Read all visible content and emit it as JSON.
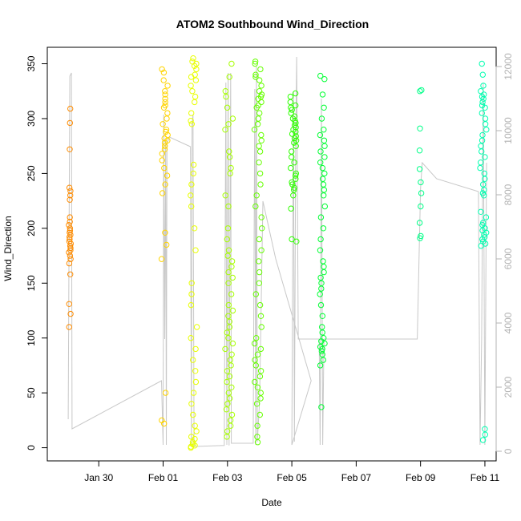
{
  "chart_data": {
    "type": "scatter",
    "title": "ATOM2 Southbound Wind_Direction",
    "xlabel": "Date",
    "ylabel": "Wind_Direction",
    "x_unit": "days since Jan 29 00:00",
    "xlim": [
      -0.6,
      13.35
    ],
    "ylim": [
      -12,
      365
    ],
    "y2lim": [
      -300,
      12600
    ],
    "x_ticks": [
      {
        "label": "Jan 30",
        "x": 1
      },
      {
        "label": "Feb 01",
        "x": 3
      },
      {
        "label": "Feb 03",
        "x": 5
      },
      {
        "label": "Feb 05",
        "x": 7
      },
      {
        "label": "Feb 07",
        "x": 9
      },
      {
        "label": "Feb 09",
        "x": 11
      },
      {
        "label": "Feb 11",
        "x": 13
      }
    ],
    "y_ticks": [
      0,
      50,
      100,
      150,
      200,
      250,
      300,
      350
    ],
    "y2_ticks": [
      0,
      2000,
      4000,
      6000,
      8000,
      10000,
      12000
    ],
    "grid": false,
    "series": [
      {
        "name": "",
        "color": "#ff8c00",
        "x_center": 0.1,
        "x_spread": 0.03,
        "values": [
          309,
          296,
          272,
          237,
          234,
          230,
          226,
          210,
          206,
          203,
          200,
          198,
          196,
          194,
          192,
          190,
          188,
          186,
          184,
          182,
          180,
          178,
          175,
          172,
          168,
          158,
          131,
          122,
          110
        ]
      },
      {
        "name": "",
        "color": "#ffd400",
        "x_center": 3.05,
        "x_spread": 0.1,
        "values": [
          345,
          342,
          335,
          330,
          325,
          322,
          318,
          315,
          312,
          310,
          305,
          300,
          295,
          290,
          288,
          285,
          282,
          280,
          278,
          275,
          272,
          268,
          262,
          255,
          248,
          240,
          232,
          196,
          185,
          172,
          50,
          25,
          22
        ]
      },
      {
        "name": "",
        "color": "#e8ff00",
        "x_center": 3.95,
        "x_spread": 0.1,
        "values": [
          355,
          352,
          350,
          348,
          345,
          340,
          338,
          335,
          330,
          325,
          320,
          315,
          305,
          298,
          295,
          258,
          250,
          240,
          230,
          220,
          200,
          180,
          150,
          140,
          130,
          110,
          100,
          90,
          80,
          70,
          60,
          50,
          40,
          30,
          20,
          15,
          10,
          8,
          5,
          3,
          2,
          1,
          0
        ]
      },
      {
        "name": "",
        "color": "#a6ff00",
        "x_center": 5.05,
        "x_spread": 0.12,
        "values": [
          350,
          338,
          325,
          320,
          310,
          300,
          295,
          290,
          270,
          265,
          255,
          250,
          230,
          220,
          200,
          190,
          180,
          175,
          170,
          165,
          160,
          155,
          150,
          140,
          130,
          125,
          120,
          115,
          110,
          105,
          100,
          95,
          90,
          85,
          80,
          75,
          70,
          65,
          60,
          55,
          50,
          45,
          40,
          35,
          30,
          25,
          20,
          15,
          10
        ]
      },
      {
        "name": "",
        "color": "#66ff00",
        "x_center": 5.95,
        "x_spread": 0.12,
        "values": [
          352,
          350,
          345,
          340,
          338,
          335,
          330,
          325,
          322,
          320,
          318,
          315,
          312,
          310,
          305,
          300,
          295,
          290,
          285,
          280,
          275,
          270,
          260,
          250,
          240,
          230,
          220,
          210,
          200,
          190,
          180,
          170,
          160,
          150,
          140,
          130,
          120,
          110,
          100,
          95,
          90,
          85,
          80,
          75,
          70,
          65,
          60,
          55,
          50,
          45,
          40,
          30,
          20,
          10,
          5
        ]
      },
      {
        "name": "",
        "color": "#2eff00",
        "x_center": 7.05,
        "x_spread": 0.1,
        "values": [
          323,
          320,
          315,
          312,
          310,
          308,
          305,
          302,
          300,
          298,
          296,
          294,
          292,
          290,
          288,
          286,
          284,
          282,
          280,
          278,
          275,
          270,
          265,
          260,
          255,
          250,
          248,
          245,
          242,
          240,
          237,
          235,
          230,
          218,
          190,
          188
        ]
      },
      {
        "name": "",
        "color": "#00ff33",
        "x_center": 7.95,
        "x_spread": 0.08,
        "values": [
          339,
          336,
          322,
          310,
          300,
          290,
          285,
          280,
          275,
          270,
          265,
          260,
          255,
          250,
          245,
          240,
          235,
          230,
          220,
          210,
          200,
          190,
          180,
          170,
          165,
          160,
          155,
          150,
          145,
          140,
          130,
          120,
          110,
          105,
          100,
          97,
          95,
          92,
          90,
          88,
          85,
          80,
          75,
          37
        ]
      },
      {
        "name": "",
        "color": "#00ff88",
        "x_center": 11.0,
        "x_spread": 0.03,
        "values": [
          326,
          325,
          291,
          271,
          254,
          242,
          232,
          220,
          205,
          193,
          191
        ]
      },
      {
        "name": "",
        "color": "#00ffb0",
        "x_center": 12.95,
        "x_spread": 0.1,
        "values": [
          350,
          340,
          330,
          325,
          322,
          320,
          318,
          315,
          312,
          310,
          305,
          300,
          295,
          290,
          285,
          280,
          275,
          270,
          265,
          260,
          255,
          250,
          245,
          240,
          235,
          232,
          230,
          215,
          210,
          205,
          203,
          200,
          198,
          196,
          194,
          192,
          190,
          188,
          186,
          184,
          17,
          12,
          7
        ]
      }
    ],
    "secondary_line": {
      "name": "",
      "color": "#c8c8c8",
      "axis": "right",
      "points": [
        [
          0.05,
          1000
        ],
        [
          0.1,
          11700
        ],
        [
          0.15,
          11800
        ],
        [
          0.17,
          700
        ],
        [
          2.95,
          2200
        ],
        [
          3.0,
          200
        ],
        [
          3.02,
          10500
        ],
        [
          3.05,
          3500
        ],
        [
          3.08,
          9700
        ],
        [
          3.1,
          200
        ],
        [
          3.12,
          9600
        ],
        [
          3.2,
          9800
        ],
        [
          3.85,
          9500
        ],
        [
          3.88,
          200
        ],
        [
          3.9,
          10200
        ],
        [
          3.93,
          10500
        ],
        [
          3.96,
          200
        ],
        [
          4.0,
          150
        ],
        [
          4.9,
          180
        ],
        [
          4.95,
          11500
        ],
        [
          4.98,
          200
        ],
        [
          5.02,
          11800
        ],
        [
          5.05,
          180
        ],
        [
          5.1,
          11800
        ],
        [
          5.12,
          250
        ],
        [
          5.8,
          250
        ],
        [
          5.85,
          11300
        ],
        [
          5.88,
          200
        ],
        [
          5.9,
          12000
        ],
        [
          5.93,
          300
        ],
        [
          6.0,
          1600
        ],
        [
          6.1,
          7800
        ],
        [
          6.5,
          6000
        ],
        [
          7.6,
          2200
        ],
        [
          7.0,
          200
        ],
        [
          7.05,
          11200
        ],
        [
          7.08,
          300
        ],
        [
          7.12,
          9600
        ],
        [
          7.15,
          12300
        ],
        [
          7.2,
          3500
        ],
        [
          7.85,
          3500
        ],
        [
          7.88,
          200
        ],
        [
          7.92,
          11000
        ],
        [
          7.96,
          200
        ],
        [
          8.0,
          3500
        ],
        [
          10.9,
          3500
        ],
        [
          11.0,
          8200
        ],
        [
          11.05,
          9000
        ],
        [
          11.5,
          8500
        ],
        [
          12.8,
          8100
        ],
        [
          12.85,
          200
        ],
        [
          12.9,
          3500
        ],
        [
          12.95,
          11500
        ],
        [
          13.0,
          200
        ],
        [
          13.05,
          9000
        ]
      ]
    }
  }
}
